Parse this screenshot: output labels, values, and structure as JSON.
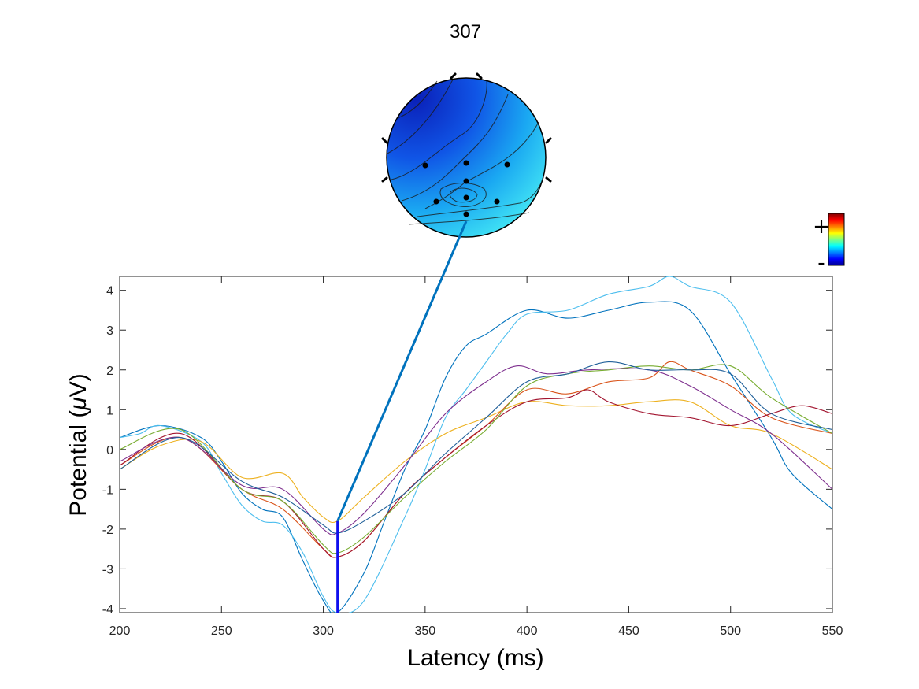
{
  "chart_data": {
    "type": "line",
    "title": "307",
    "xlabel": "Latency (ms)",
    "ylabel_prefix": "Potential (",
    "ylabel_mu": "μ",
    "ylabel_suffix": "V)",
    "xlim": [
      200,
      550
    ],
    "ylim": [
      -4.1,
      4.35
    ],
    "xticks": [
      200,
      250,
      300,
      350,
      400,
      450,
      500,
      550
    ],
    "yticks": [
      -4,
      -3,
      -2,
      -1,
      0,
      1,
      2,
      3,
      4
    ],
    "grid": false,
    "marker_latency": 307,
    "marker_ymin": -4.1,
    "marker_ymax": -1.8,
    "colorbar": {
      "plus": "+",
      "minus": "-"
    },
    "series": [
      {
        "color": "#0072BD",
        "x": [
          200,
          220,
          240,
          250,
          260,
          270,
          280,
          290,
          300,
          307,
          320,
          330,
          340,
          350,
          360,
          370,
          380,
          400,
          420,
          440,
          460,
          480,
          500,
          520,
          530,
          550
        ],
        "y": [
          0.3,
          0.6,
          0.3,
          -0.3,
          -1.1,
          -1.5,
          -1.7,
          -2.8,
          -3.8,
          -4.1,
          -3.1,
          -1.8,
          -0.5,
          0.5,
          1.8,
          2.6,
          2.9,
          3.5,
          3.3,
          3.5,
          3.7,
          3.5,
          1.9,
          0.3,
          -0.6,
          -1.5
        ]
      },
      {
        "color": "#4DBEEE",
        "x": [
          200,
          210,
          220,
          240,
          250,
          260,
          270,
          280,
          290,
          300,
          307,
          320,
          340,
          350,
          360,
          370,
          380,
          390,
          400,
          420,
          440,
          460,
          470,
          480,
          500,
          520,
          530,
          550
        ],
        "y": [
          0.3,
          0.4,
          0.6,
          0.2,
          -0.6,
          -1.4,
          -1.8,
          -1.9,
          -2.6,
          -3.7,
          -4.1,
          -3.8,
          -1.7,
          -0.5,
          0.8,
          1.5,
          2.2,
          2.9,
          3.4,
          3.5,
          3.9,
          4.1,
          4.35,
          4.1,
          3.7,
          1.8,
          0.9,
          0.4
        ]
      },
      {
        "color": "#EDB120",
        "x": [
          200,
          220,
          240,
          260,
          280,
          290,
          300,
          307,
          320,
          340,
          360,
          380,
          400,
          420,
          440,
          460,
          480,
          500,
          520,
          550
        ],
        "y": [
          -0.5,
          0.1,
          0.2,
          -0.7,
          -0.6,
          -1.2,
          -1.7,
          -1.8,
          -1.2,
          -0.3,
          0.4,
          0.8,
          1.2,
          1.1,
          1.1,
          1.2,
          1.2,
          0.6,
          0.4,
          -0.5
        ]
      },
      {
        "color": "#D95319",
        "x": [
          200,
          230,
          260,
          280,
          300,
          307,
          320,
          340,
          360,
          380,
          400,
          420,
          440,
          460,
          470,
          480,
          500,
          520,
          550
        ],
        "y": [
          -0.4,
          0.3,
          -1.0,
          -1.5,
          -2.5,
          -2.7,
          -2.3,
          -1.1,
          -0.2,
          0.6,
          1.5,
          1.4,
          1.7,
          1.8,
          2.2,
          2.0,
          1.6,
          0.8,
          0.4
        ]
      },
      {
        "color": "#A2142F",
        "x": [
          200,
          230,
          260,
          280,
          300,
          307,
          320,
          340,
          360,
          380,
          400,
          420,
          430,
          440,
          460,
          480,
          500,
          520,
          535,
          550
        ],
        "y": [
          -0.4,
          0.4,
          -1.0,
          -1.3,
          -2.5,
          -2.7,
          -2.3,
          -1.1,
          -0.2,
          0.6,
          1.2,
          1.3,
          1.5,
          1.2,
          0.9,
          0.8,
          0.6,
          0.9,
          1.1,
          0.9
        ]
      },
      {
        "color": "#77AC30",
        "x": [
          200,
          230,
          260,
          280,
          300,
          307,
          320,
          340,
          360,
          380,
          400,
          420,
          440,
          460,
          480,
          500,
          520,
          550
        ],
        "y": [
          0.0,
          0.5,
          -1.0,
          -1.3,
          -2.4,
          -2.6,
          -2.2,
          -1.2,
          -0.3,
          0.5,
          1.6,
          1.9,
          2.0,
          2.1,
          2.0,
          2.1,
          1.3,
          0.4
        ]
      },
      {
        "color": "#7E2F8E",
        "x": [
          200,
          230,
          260,
          280,
          300,
          307,
          320,
          340,
          360,
          380,
          395,
          410,
          430,
          460,
          480,
          500,
          520,
          550
        ],
        "y": [
          -0.3,
          0.3,
          -0.9,
          -1.0,
          -2.0,
          -2.1,
          -1.6,
          -0.4,
          0.9,
          1.7,
          2.1,
          1.9,
          2.0,
          2.0,
          1.6,
          1.0,
          0.4,
          -1.0
        ]
      },
      {
        "color": "#1F5F99",
        "x": [
          200,
          230,
          260,
          280,
          300,
          307,
          320,
          340,
          360,
          380,
          400,
          420,
          440,
          460,
          480,
          500,
          520,
          550
        ],
        "y": [
          -0.5,
          0.3,
          -0.8,
          -1.2,
          -1.9,
          -2.1,
          -1.8,
          -1.1,
          -0.1,
          0.8,
          1.7,
          1.9,
          2.2,
          2.0,
          2.0,
          1.9,
          0.9,
          0.5
        ]
      }
    ]
  }
}
